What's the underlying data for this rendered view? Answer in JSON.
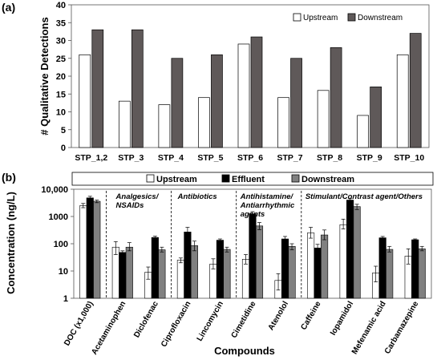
{
  "chart_data": [
    {
      "panel_label": "(a)",
      "type": "bar",
      "ylabel": "# Qualitative Detections",
      "ylim": [
        0,
        40
      ],
      "y_ticks": [
        "0",
        "5",
        "10",
        "15",
        "20",
        "25",
        "30",
        "35",
        "40"
      ],
      "categories": [
        "STP_1,2",
        "STP_3",
        "STP_4",
        "STP_5",
        "STP_6",
        "STP_7",
        "STP_8",
        "STP_9",
        "STP_10"
      ],
      "series": [
        {
          "name": "Upstream",
          "color": "#ffffff",
          "values": [
            26,
            13,
            12,
            14,
            29,
            14,
            16,
            9,
            26
          ]
        },
        {
          "name": "Downstream",
          "color": "#5f5959",
          "values": [
            33,
            33,
            25,
            26,
            31,
            25,
            28,
            17,
            32
          ]
        }
      ],
      "legend_position": "top-right",
      "grid": false
    },
    {
      "panel_label": "(b)",
      "type": "bar",
      "scale": "log",
      "ylabel": "Concentration (ng/L)",
      "xlabel": "Compounds",
      "ylim": [
        1,
        10000
      ],
      "y_ticks": [
        "1",
        "10",
        "100",
        "1000",
        "10,000"
      ],
      "categories": [
        "DOC (x1,000)",
        "Acetaminophen",
        "Diclofenac",
        "Ciprofloxacin",
        "Lincomycin",
        "Cimetidine",
        "Atenolol",
        "Caffeine",
        "Iopamidol",
        "Mefenamic acid",
        "Carbamazepine"
      ],
      "series": [
        {
          "name": "Upstream",
          "color": "#ffffff",
          "values": [
            2500,
            75,
            9,
            25,
            18,
            27,
            4.5,
            250,
            500,
            8.5,
            35
          ],
          "errors": [
            [
              2100,
              3000
            ],
            [
              40,
              120
            ],
            [
              5,
              14
            ],
            [
              20,
              30
            ],
            [
              12,
              28
            ],
            [
              18,
              40
            ],
            [
              2,
              8
            ],
            [
              160,
              400
            ],
            [
              350,
              800
            ],
            [
              4,
              15
            ],
            [
              18,
              65
            ]
          ]
        },
        {
          "name": "Effluent",
          "color": "#000000",
          "values": [
            4800,
            48,
            170,
            270,
            135,
            1250,
            150,
            70,
            4000,
            165,
            140
          ],
          "errors": [
            [
              4200,
              5500
            ],
            [
              40,
              55
            ],
            [
              150,
              190
            ],
            [
              200,
              400
            ],
            [
              120,
              150
            ],
            [
              1000,
              1500
            ],
            [
              120,
              185
            ],
            [
              55,
              95
            ],
            [
              3500,
              4500
            ],
            [
              140,
              185
            ],
            [
              130,
              150
            ]
          ]
        },
        {
          "name": "Downstream",
          "color": "#808080",
          "values": [
            3600,
            75,
            60,
            85,
            62,
            450,
            80,
            210,
            2300,
            62,
            65
          ],
          "errors": [
            [
              3200,
              4000
            ],
            [
              55,
              110
            ],
            [
              50,
              75
            ],
            [
              55,
              125
            ],
            [
              50,
              75
            ],
            [
              330,
              600
            ],
            [
              60,
              100
            ],
            [
              140,
              320
            ],
            [
              1800,
              2800
            ],
            [
              50,
              80
            ],
            [
              55,
              80
            ]
          ]
        }
      ],
      "groups": [
        {
          "label_lines": [
            "Analgesics/",
            "NSAIDs"
          ]
        },
        {
          "label_lines": [
            "Antibiotics"
          ]
        },
        {
          "label_lines": [
            "Antihistamine/",
            "Antiarrhythmic",
            "agents"
          ]
        },
        {
          "label_lines": [
            "Stimulant/Contrast  agent/Others"
          ]
        }
      ],
      "legend_position": "top",
      "grid": false
    }
  ]
}
